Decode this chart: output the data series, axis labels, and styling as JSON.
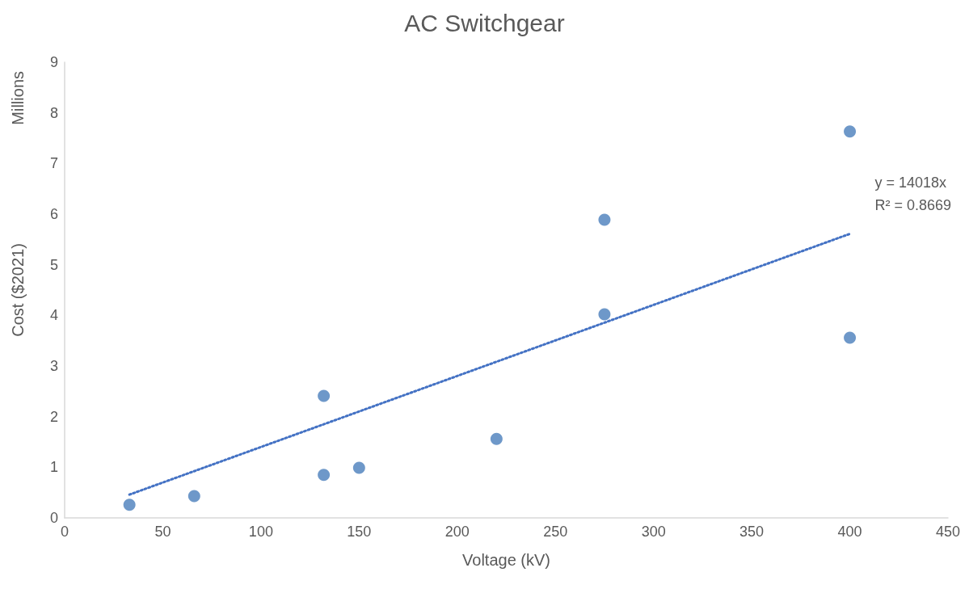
{
  "chart_data": {
    "type": "scatter",
    "title": "AC Switchgear",
    "xlabel": "Voltage (kV)",
    "ylabel": "Cost ($2021)",
    "annotations": [
      "Millions",
      "y = 14018x\nR² = 0.8669"
    ],
    "x": [
      33,
      66,
      132,
      132,
      150,
      220,
      275,
      275,
      400,
      400
    ],
    "series": [
      {
        "type": "scatter",
        "color": "#4a7ebb",
        "marker": "circle",
        "values": [
          0.26,
          0.43,
          2.41,
          0.85,
          0.99,
          1.56,
          5.89,
          4.02,
          3.56,
          7.63
        ]
      },
      {
        "type": "line",
        "color": "#4472c4",
        "marker": "none",
        "line_style": "dotted",
        "x": [
          33,
          400
        ],
        "values": [
          0.46,
          5.61
        ]
      }
    ],
    "xlim": [
      0,
      450
    ],
    "xticks": [
      0,
      50,
      100,
      150,
      200,
      250,
      300,
      350,
      400,
      450
    ],
    "ylim": [
      0,
      9
    ],
    "yticks": [
      0,
      1,
      2,
      3,
      4,
      5,
      6,
      7,
      8,
      9
    ],
    "grid": false
  }
}
